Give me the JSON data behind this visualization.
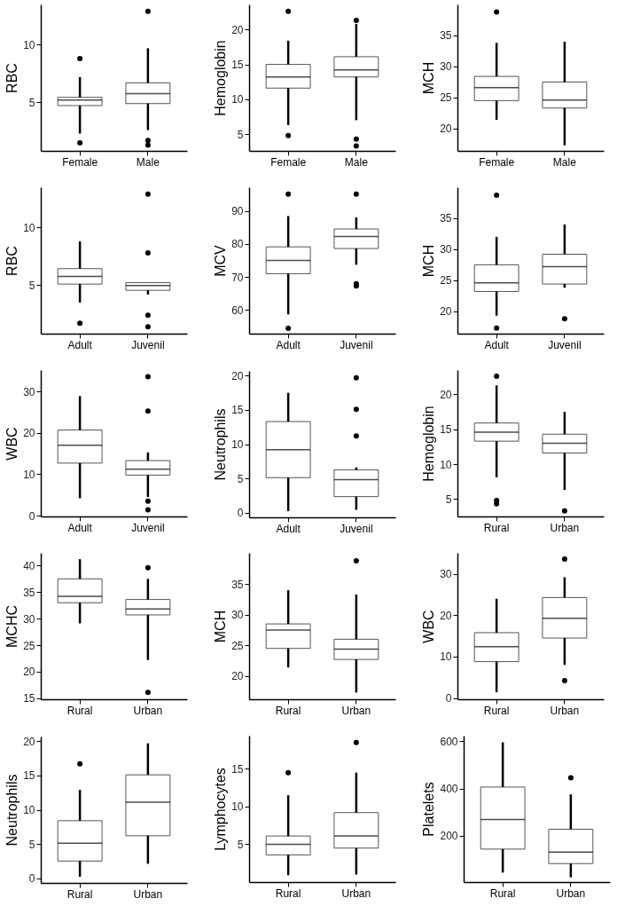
{
  "chart_data": [
    {
      "type": "box",
      "ylabel": "RBC",
      "categories": [
        "Female",
        "Male"
      ],
      "ylim": [
        0.8,
        13.5
      ],
      "yticks": [
        5,
        10
      ],
      "boxes": [
        {
          "low": 2.3,
          "q1": 4.73,
          "median": 5.2,
          "q3": 5.44,
          "high": 7.2
        },
        {
          "low": 2.6,
          "q1": 4.9,
          "median": 5.77,
          "q3": 6.7,
          "high": 9.7
        }
      ],
      "series": [
        {
          "type": "scatter",
          "color": "#000000",
          "x": [
            "Female",
            "Female",
            "Male",
            "Male",
            "Male"
          ],
          "values": [
            8.8,
            1.5,
            12.9,
            1.7,
            1.3
          ]
        }
      ]
    },
    {
      "type": "box",
      "ylabel": "Hemoglobin",
      "categories": [
        "Female",
        "Male"
      ],
      "ylim": [
        2.6,
        23.6
      ],
      "yticks": [
        5,
        10,
        15,
        20
      ],
      "boxes": [
        {
          "low": 6.3,
          "q1": 11.6,
          "median": 13.2,
          "q3": 15,
          "high": 18.4
        },
        {
          "low": 7,
          "q1": 13.2,
          "median": 14.2,
          "q3": 16.1,
          "high": 20.8
        }
      ],
      "series": [
        {
          "type": "scatter",
          "color": "#000000",
          "x": [
            "Female",
            "Female",
            "Male",
            "Male",
            "Male"
          ],
          "values": [
            22.6,
            4.8,
            21.3,
            4.3,
            3.3
          ]
        }
      ]
    },
    {
      "type": "box",
      "ylabel": "MCH",
      "categories": [
        "Female",
        "Male"
      ],
      "ylim": [
        16.4,
        40
      ],
      "yticks": [
        20,
        25,
        30,
        35
      ],
      "boxes": [
        {
          "low": 21.4,
          "q1": 24.5,
          "median": 26.6,
          "q3": 28.4,
          "high": 33.8
        },
        {
          "low": 17.3,
          "q1": 23.3,
          "median": 24.6,
          "q3": 27.5,
          "high": 34
        }
      ],
      "series": [
        {
          "type": "scatter",
          "color": "#000000",
          "x": [
            "Female"
          ],
          "values": [
            38.8
          ]
        }
      ]
    },
    {
      "type": "box",
      "ylabel": "RBC",
      "categories": [
        "Adult",
        "Juvenil"
      ],
      "ylim": [
        0.8,
        13.5
      ],
      "yticks": [
        5,
        10
      ],
      "boxes": [
        {
          "low": 3.5,
          "q1": 5.1,
          "median": 5.77,
          "q3": 6.44,
          "high": 8.8
        },
        {
          "low": 4.2,
          "q1": 4.56,
          "median": 4.97,
          "q3": 5.23,
          "high": 5.23
        }
      ],
      "series": [
        {
          "type": "scatter",
          "color": "#000000",
          "x": [
            "Adult",
            "Juvenil",
            "Juvenil",
            "Juvenil",
            "Juvenil"
          ],
          "values": [
            1.7,
            12.9,
            7.8,
            2.4,
            1.4
          ]
        }
      ]
    },
    {
      "type": "box",
      "ylabel": "MCV",
      "categories": [
        "Adult",
        "Juvenil"
      ],
      "ylim": [
        52.9,
        97.1
      ],
      "yticks": [
        60,
        70,
        80,
        90
      ],
      "boxes": [
        {
          "low": 58.7,
          "q1": 71,
          "median": 75,
          "q3": 79.1,
          "high": 88.4
        },
        {
          "low": 73.7,
          "q1": 78.6,
          "median": 82.2,
          "q3": 84.5,
          "high": 88
        }
      ],
      "series": [
        {
          "type": "scatter",
          "color": "#000000",
          "x": [
            "Adult",
            "Adult",
            "Juvenil",
            "Juvenil",
            "Juvenil"
          ],
          "values": [
            95,
            54.5,
            95,
            68,
            67.3
          ]
        }
      ]
    },
    {
      "type": "box",
      "ylabel": "MCH",
      "categories": [
        "Adult",
        "Juvenil"
      ],
      "ylim": [
        16.4,
        40
      ],
      "yticks": [
        20,
        25,
        30,
        35
      ],
      "boxes": [
        {
          "low": 19.3,
          "q1": 23.2,
          "median": 24.6,
          "q3": 27.5,
          "high": 32
        },
        {
          "low": 23.8,
          "q1": 24.4,
          "median": 27.2,
          "q3": 29.2,
          "high": 34
        }
      ],
      "series": [
        {
          "type": "scatter",
          "color": "#000000",
          "x": [
            "Adult",
            "Adult",
            "Juvenil"
          ],
          "values": [
            38.7,
            17.3,
            18.8
          ]
        }
      ]
    },
    {
      "type": "box",
      "ylabel": "WBC",
      "categories": [
        "Adult",
        "Juvenil"
      ],
      "ylim": [
        -0.2,
        35.2
      ],
      "yticks": [
        0,
        10,
        20,
        30
      ],
      "boxes": [
        {
          "low": 4.2,
          "q1": 12.7,
          "median": 17,
          "q3": 20.7,
          "high": 28.9
        },
        {
          "low": 4.5,
          "q1": 9.8,
          "median": 11.2,
          "q3": 13.3,
          "high": 15.3
        }
      ],
      "series": [
        {
          "type": "scatter",
          "color": "#000000",
          "x": [
            "Juvenil",
            "Juvenil",
            "Juvenil",
            "Juvenil"
          ],
          "values": [
            33.6,
            25.3,
            3.5,
            1.4
          ]
        }
      ]
    },
    {
      "type": "box",
      "ylabel": "Neutrophils",
      "categories": [
        "Adult",
        "Juvenil"
      ],
      "ylim": [
        -0.7,
        20.7
      ],
      "yticks": [
        0,
        5,
        10,
        15,
        20
      ],
      "boxes": [
        {
          "low": 0.2,
          "q1": 5.1,
          "median": 9.2,
          "q3": 13.3,
          "high": 17.5
        },
        {
          "low": 0.4,
          "q1": 2.33,
          "median": 4.8,
          "q3": 6.25,
          "high": 6.6
        }
      ],
      "series": [
        {
          "type": "scatter",
          "color": "#000000",
          "x": [
            "Juvenil",
            "Juvenil",
            "Juvenil"
          ],
          "values": [
            19.7,
            15.1,
            11.2
          ]
        }
      ]
    },
    {
      "type": "box",
      "ylabel": "Hemoglobin",
      "categories": [
        "Rural",
        "Urban"
      ],
      "ylim": [
        2.5,
        23.5
      ],
      "yticks": [
        5,
        10,
        15,
        20
      ],
      "boxes": [
        {
          "low": 8.1,
          "q1": 13.3,
          "median": 14.6,
          "q3": 15.9,
          "high": 21.3
        },
        {
          "low": 6.3,
          "q1": 11.6,
          "median": 13,
          "q3": 14.3,
          "high": 17.5
        }
      ],
      "series": [
        {
          "type": "scatter",
          "color": "#000000",
          "x": [
            "Rural",
            "Rural",
            "Rural",
            "Urban"
          ],
          "values": [
            22.6,
            4.8,
            4.3,
            3.3
          ]
        }
      ]
    },
    {
      "type": "box",
      "ylabel": "MCHC",
      "categories": [
        "Rural",
        "Urban"
      ],
      "ylim": [
        14.8,
        42.4
      ],
      "yticks": [
        15,
        20,
        25,
        30,
        35,
        40
      ],
      "boxes": [
        {
          "low": 29.1,
          "q1": 33,
          "median": 34.2,
          "q3": 37.5,
          "high": 41.2
        },
        {
          "low": 22.2,
          "q1": 30.7,
          "median": 31.8,
          "q3": 33.6,
          "high": 37.5
        }
      ],
      "series": [
        {
          "type": "scatter",
          "color": "#000000",
          "x": [
            "Urban",
            "Urban"
          ],
          "values": [
            39.6,
            16.1
          ]
        }
      ]
    },
    {
      "type": "box",
      "ylabel": "MCH",
      "categories": [
        "Rural",
        "Urban"
      ],
      "ylim": [
        16.2,
        40.1
      ],
      "yticks": [
        20,
        25,
        30,
        35
      ],
      "boxes": [
        {
          "low": 21.4,
          "q1": 24.5,
          "median": 27.5,
          "q3": 28.5,
          "high": 34
        },
        {
          "low": 17.3,
          "q1": 22.7,
          "median": 24.4,
          "q3": 26,
          "high": 33.3
        }
      ],
      "series": [
        {
          "type": "scatter",
          "color": "#000000",
          "x": [
            "Urban"
          ],
          "values": [
            38.8
          ]
        }
      ]
    },
    {
      "type": "box",
      "ylabel": "WBC",
      "categories": [
        "Rural",
        "Urban"
      ],
      "ylim": [
        -0.3,
        35.1
      ],
      "yticks": [
        0,
        10,
        20,
        30
      ],
      "boxes": [
        {
          "low": 1.4,
          "q1": 8.8,
          "median": 12.4,
          "q3": 15.8,
          "high": 24
        },
        {
          "low": 8,
          "q1": 14.5,
          "median": 19.3,
          "q3": 24.3,
          "high": 29.2
        }
      ],
      "series": [
        {
          "type": "scatter",
          "color": "#000000",
          "x": [
            "Urban",
            "Urban"
          ],
          "values": [
            33.6,
            4.2
          ]
        }
      ]
    },
    {
      "type": "box",
      "ylabel": "Neutrophils",
      "categories": [
        "Rural",
        "Urban"
      ],
      "ylim": [
        -0.7,
        20.7
      ],
      "yticks": [
        0,
        5,
        10,
        15,
        20
      ],
      "boxes": [
        {
          "low": 0.2,
          "q1": 2.5,
          "median": 5.1,
          "q3": 8.4,
          "high": 12.9
        },
        {
          "low": 2.1,
          "q1": 6.2,
          "median": 11.1,
          "q3": 15.1,
          "high": 19.7
        }
      ],
      "series": [
        {
          "type": "scatter",
          "color": "#000000",
          "x": [
            "Rural"
          ],
          "values": [
            16.7
          ]
        }
      ]
    },
    {
      "type": "box",
      "ylabel": "Lymphocytes",
      "categories": [
        "Rural",
        "Urban"
      ],
      "ylim": [
        0,
        19.4
      ],
      "yticks": [
        5,
        10,
        15
      ],
      "boxes": [
        {
          "low": 0.9,
          "q1": 3.6,
          "median": 5,
          "q3": 6.1,
          "high": 11.5
        },
        {
          "low": 1,
          "q1": 4.5,
          "median": 6.1,
          "q3": 9.2,
          "high": 14.5
        }
      ],
      "series": [
        {
          "type": "scatter",
          "color": "#000000",
          "x": [
            "Rural",
            "Urban"
          ],
          "values": [
            14.5,
            18.5
          ]
        }
      ]
    },
    {
      "type": "box",
      "ylabel": "Platelets",
      "categories": [
        "Rural",
        "Urban"
      ],
      "ylim": [
        5,
        623
      ],
      "yticks": [
        200,
        400,
        600
      ],
      "boxes": [
        {
          "low": 45,
          "q1": 144,
          "median": 269,
          "q3": 406,
          "high": 595
        },
        {
          "low": 25,
          "q1": 83,
          "median": 131,
          "q3": 228,
          "high": 375
        }
      ],
      "series": [
        {
          "type": "scatter",
          "color": "#000000",
          "x": [
            "Urban"
          ],
          "values": [
            445
          ]
        }
      ]
    }
  ]
}
